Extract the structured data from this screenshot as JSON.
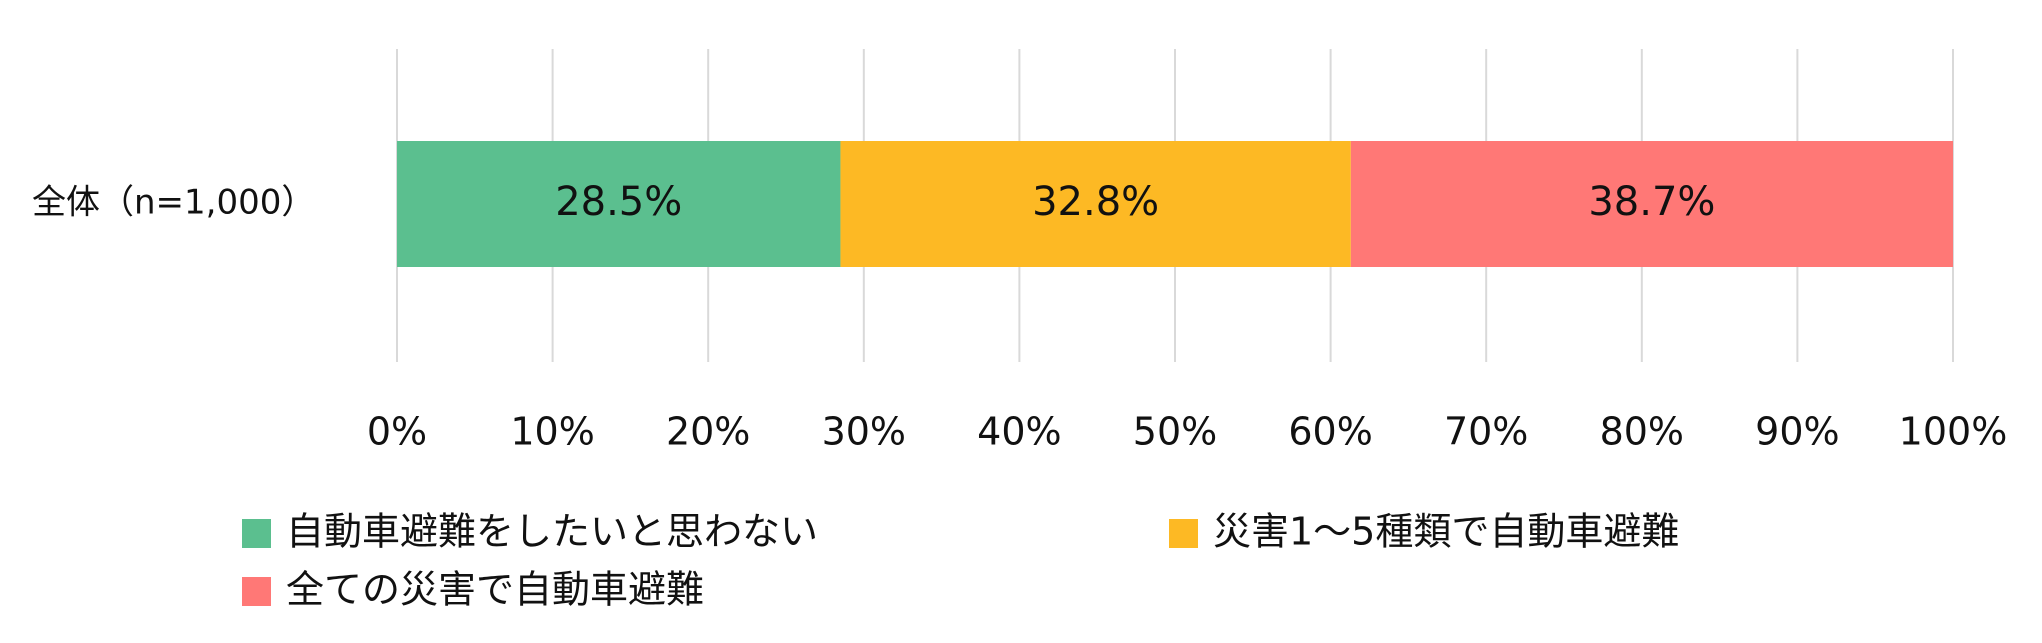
{
  "chart_data": {
    "type": "bar",
    "horizontal": true,
    "stacked": true,
    "categories": [
      "全体（n=1,000）"
    ],
    "series": [
      {
        "name": "自動車避難をしたいと思わない",
        "color": "#5bbf8f",
        "values": [
          28.5
        ],
        "value_labels": [
          "28.5%"
        ]
      },
      {
        "name": "災害1〜5種類で自動車避難",
        "color": "#fdb924",
        "values": [
          32.8
        ],
        "value_labels": [
          "32.8%"
        ]
      },
      {
        "name": "全ての災害で自動車避難",
        "color": "#ff7876",
        "values": [
          38.7
        ],
        "value_labels": [
          "38.7%"
        ]
      }
    ],
    "xlim": [
      0,
      100
    ],
    "xticks": [
      {
        "value": 0,
        "label": "0%"
      },
      {
        "value": 10,
        "label": "10%"
      },
      {
        "value": 20,
        "label": "20%"
      },
      {
        "value": 30,
        "label": "30%"
      },
      {
        "value": 40,
        "label": "40%"
      },
      {
        "value": 50,
        "label": "50%"
      },
      {
        "value": 60,
        "label": "60%"
      },
      {
        "value": 70,
        "label": "70%"
      },
      {
        "value": 80,
        "label": "80%"
      },
      {
        "value": 90,
        "label": "90%"
      },
      {
        "value": 100,
        "label": "100%"
      }
    ],
    "grid": true,
    "legend": "bottom"
  }
}
